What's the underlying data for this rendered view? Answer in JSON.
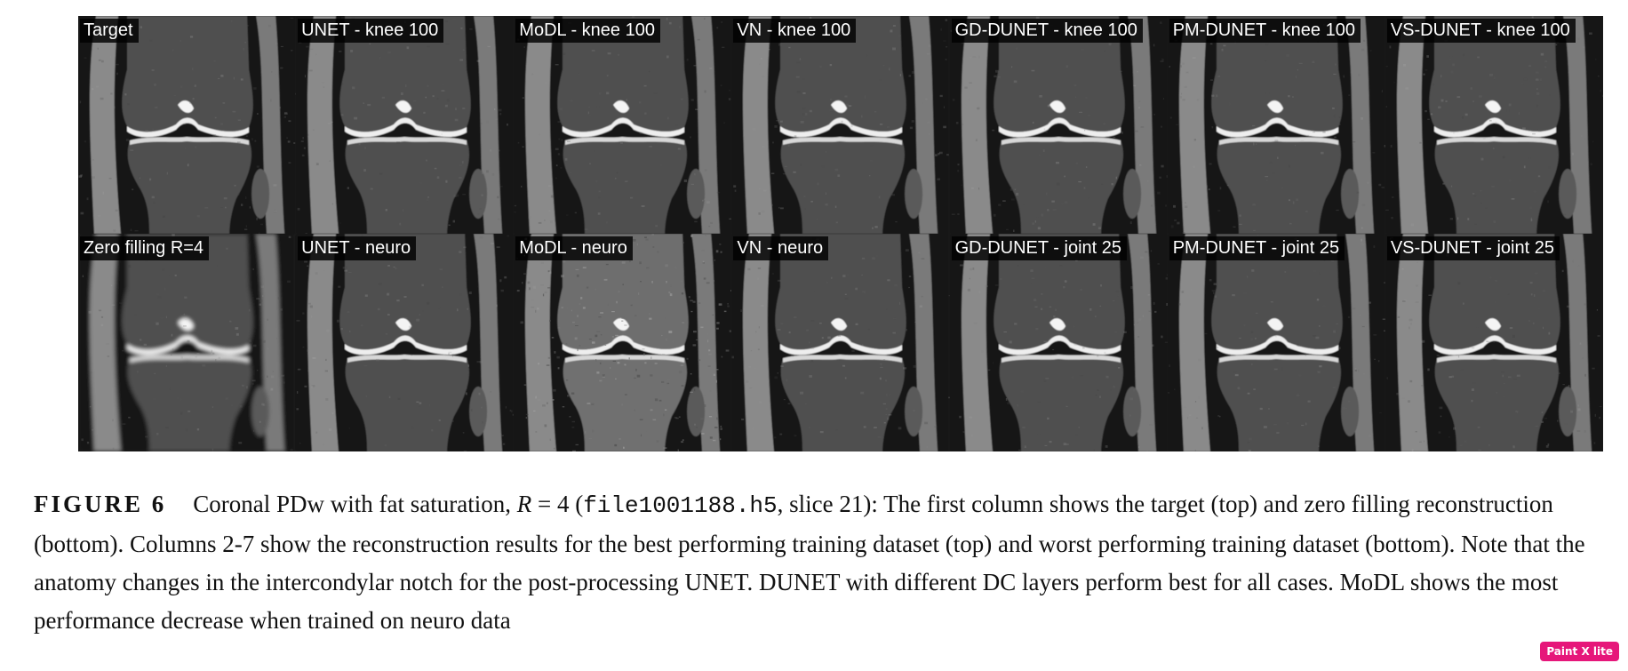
{
  "figure": {
    "panels_top": [
      "Target",
      "UNET - knee 100",
      "MoDL - knee 100",
      "VN - knee 100",
      "GD-DUNET - knee 100",
      "PM-DUNET - knee 100",
      "VS-DUNET - knee 100"
    ],
    "panels_bottom": [
      "Zero filling R=4",
      "UNET - neuro",
      "MoDL - neuro",
      "VN - neuro",
      "GD-DUNET - joint 25",
      "PM-DUNET - joint 25",
      "VS-DUNET - joint 25"
    ]
  },
  "caption": {
    "label": "FIGURE 6",
    "part1": "Coronal PDw with fat saturation, ",
    "math_var": "R",
    "math_eq": " = 4 (",
    "filename": "file1001188.h5",
    "part2": ", slice 21): The first column shows the target (top) and zero filling reconstruction (bottom). Columns 2-7 show the reconstruction results for the best performing training dataset (top) and worst performing training dataset (bottom). Note that the anatomy changes in the intercondylar notch for the post-processing UNET. DUNET with different DC layers perform best for all cases. MoDL shows the most performance decrease when trained on neuro data"
  },
  "badge": {
    "text": "Paint X lite",
    "color": "#e6177a"
  }
}
